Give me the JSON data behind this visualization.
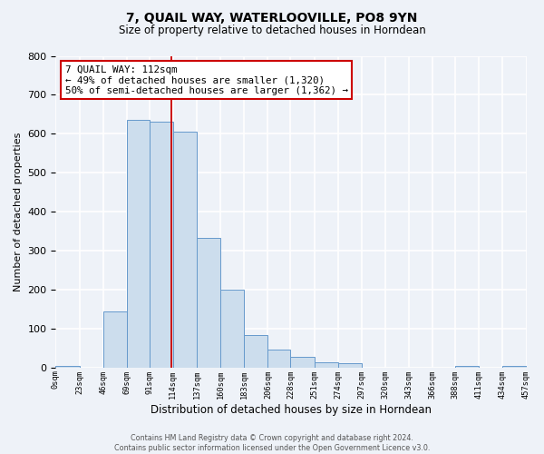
{
  "title": "7, QUAIL WAY, WATERLOOVILLE, PO8 9YN",
  "subtitle": "Size of property relative to detached houses in Horndean",
  "xlabel": "Distribution of detached houses by size in Horndean",
  "ylabel": "Number of detached properties",
  "bar_color": "#ccdded",
  "bar_edge_color": "#6699cc",
  "background_color": "#eef2f8",
  "grid_color": "#ffffff",
  "bin_edges": [
    0,
    23,
    46,
    69,
    91,
    114,
    137,
    160,
    183,
    206,
    228,
    251,
    274,
    297,
    320,
    343,
    366,
    388,
    411,
    434,
    457
  ],
  "bin_labels": [
    "0sqm",
    "23sqm",
    "46sqm",
    "69sqm",
    "91sqm",
    "114sqm",
    "137sqm",
    "160sqm",
    "183sqm",
    "206sqm",
    "228sqm",
    "251sqm",
    "274sqm",
    "297sqm",
    "320sqm",
    "343sqm",
    "366sqm",
    "388sqm",
    "411sqm",
    "434sqm",
    "457sqm"
  ],
  "counts": [
    3,
    0,
    143,
    636,
    632,
    605,
    333,
    199,
    84,
    46,
    27,
    13,
    12,
    0,
    0,
    0,
    0,
    3,
    0,
    3
  ],
  "property_line_x": 112,
  "property_label": "7 QUAIL WAY: 112sqm",
  "annotation_line1": "← 49% of detached houses are smaller (1,320)",
  "annotation_line2": "50% of semi-detached houses are larger (1,362) →",
  "annotation_box_color": "#ffffff",
  "annotation_box_edge": "#cc0000",
  "property_line_color": "#cc0000",
  "ylim": [
    0,
    800
  ],
  "yticks": [
    0,
    100,
    200,
    300,
    400,
    500,
    600,
    700,
    800
  ],
  "footer_line1": "Contains HM Land Registry data © Crown copyright and database right 2024.",
  "footer_line2": "Contains public sector information licensed under the Open Government Licence v3.0."
}
